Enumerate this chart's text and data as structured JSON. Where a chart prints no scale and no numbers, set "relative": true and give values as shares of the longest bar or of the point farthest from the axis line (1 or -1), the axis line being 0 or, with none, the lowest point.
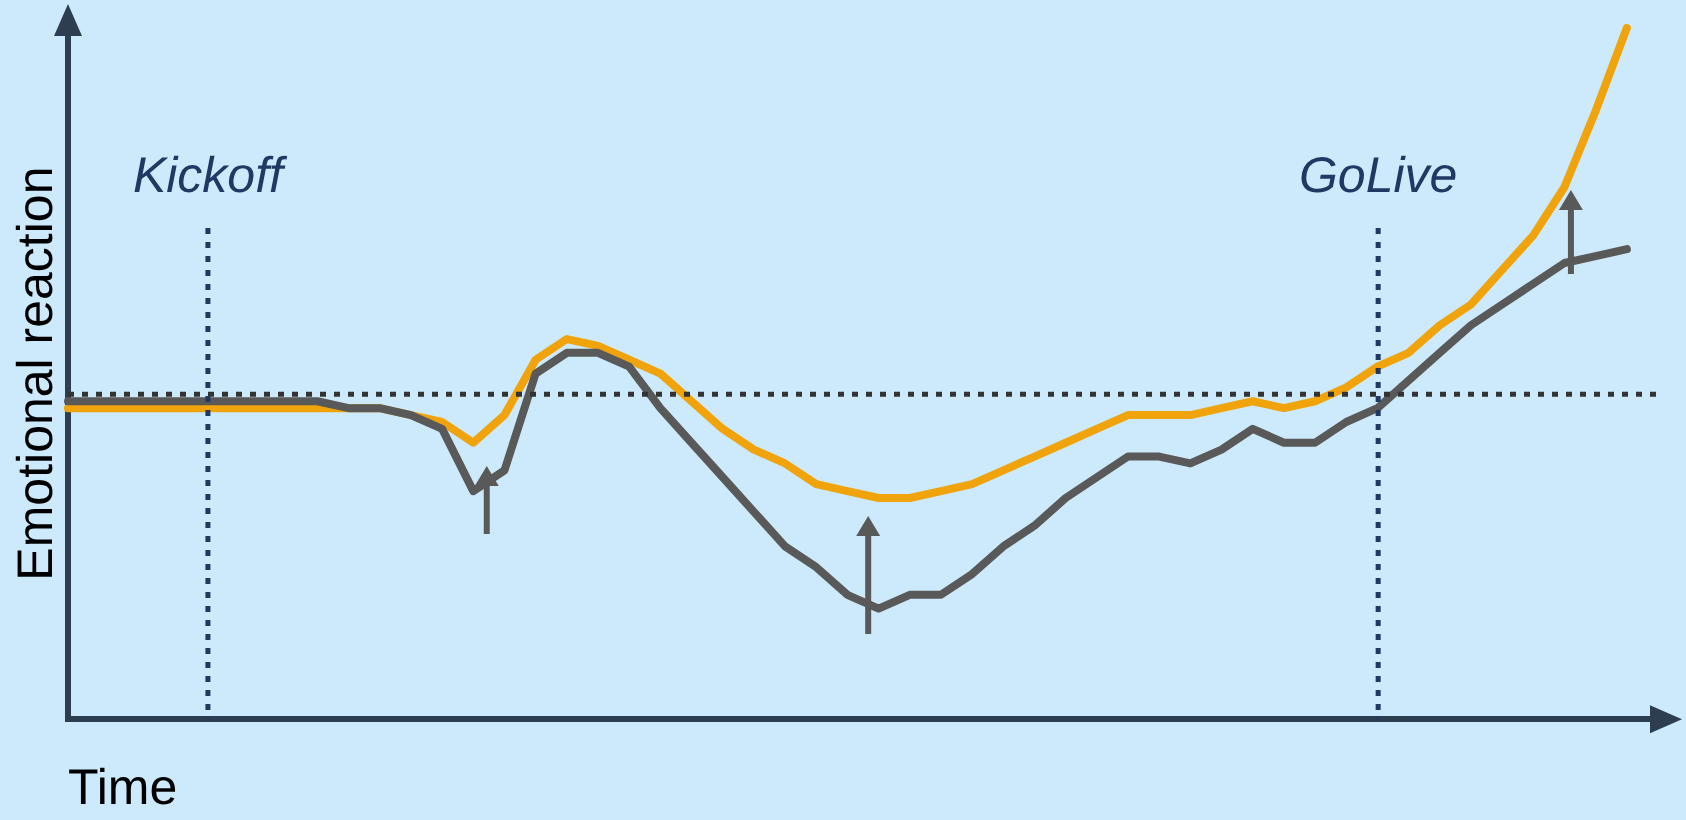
{
  "chart_data": {
    "type": "line",
    "relative": true,
    "xlabel": "Time",
    "ylabel": "Emotional reaction",
    "legend": false,
    "marker": "none",
    "line_style": "solid",
    "categories": [
      null,
      null,
      null,
      null,
      null,
      null,
      null,
      null,
      null,
      null,
      null,
      null,
      null,
      null,
      null,
      null,
      null,
      null,
      null,
      null,
      null,
      null,
      null,
      null,
      null,
      null,
      null,
      null,
      null,
      null,
      null,
      null,
      null,
      null,
      null,
      null,
      null,
      null,
      null,
      null,
      null,
      null,
      null,
      null,
      null,
      null,
      null,
      null,
      null,
      null,
      null,
      null
    ],
    "series": [
      {
        "color": "#595959",
        "values": [
          0.46,
          0.46,
          0.46,
          0.46,
          0.46,
          0.46,
          0.46,
          0.46,
          0.46,
          0.45,
          0.45,
          0.44,
          0.42,
          0.33,
          0.36,
          0.5,
          0.53,
          0.53,
          0.51,
          0.45,
          0.4,
          0.35,
          0.3,
          0.25,
          0.22,
          0.18,
          0.16,
          0.18,
          0.18,
          0.21,
          0.25,
          0.28,
          0.32,
          0.35,
          0.38,
          0.38,
          0.37,
          0.39,
          0.42,
          0.4,
          0.4,
          0.43,
          0.45,
          0.49,
          0.53,
          0.57,
          0.6,
          0.63,
          0.66,
          0.67,
          0.68,
          null
        ]
      },
      {
        "color": "#f0a30a",
        "values": [
          0.45,
          0.45,
          0.45,
          0.45,
          0.45,
          0.45,
          0.45,
          0.45,
          0.45,
          0.45,
          0.45,
          0.44,
          0.43,
          0.4,
          0.44,
          0.52,
          0.55,
          0.54,
          0.52,
          0.5,
          0.46,
          0.42,
          0.39,
          0.37,
          0.34,
          0.33,
          0.32,
          0.32,
          0.33,
          0.34,
          0.36,
          0.38,
          0.4,
          0.42,
          0.44,
          0.44,
          0.44,
          0.45,
          0.46,
          0.45,
          0.46,
          0.48,
          0.51,
          0.53,
          0.57,
          0.6,
          0.65,
          0.7,
          0.77,
          0.88,
          1,
          null
        ]
      }
    ],
    "annotations": [
      "Kickoff",
      "GoLive"
    ],
    "ref_lines": [
      {
        "axis": "y",
        "value": 0.47,
        "color": "#333333",
        "line_style": "dotted"
      }
    ]
  }
}
